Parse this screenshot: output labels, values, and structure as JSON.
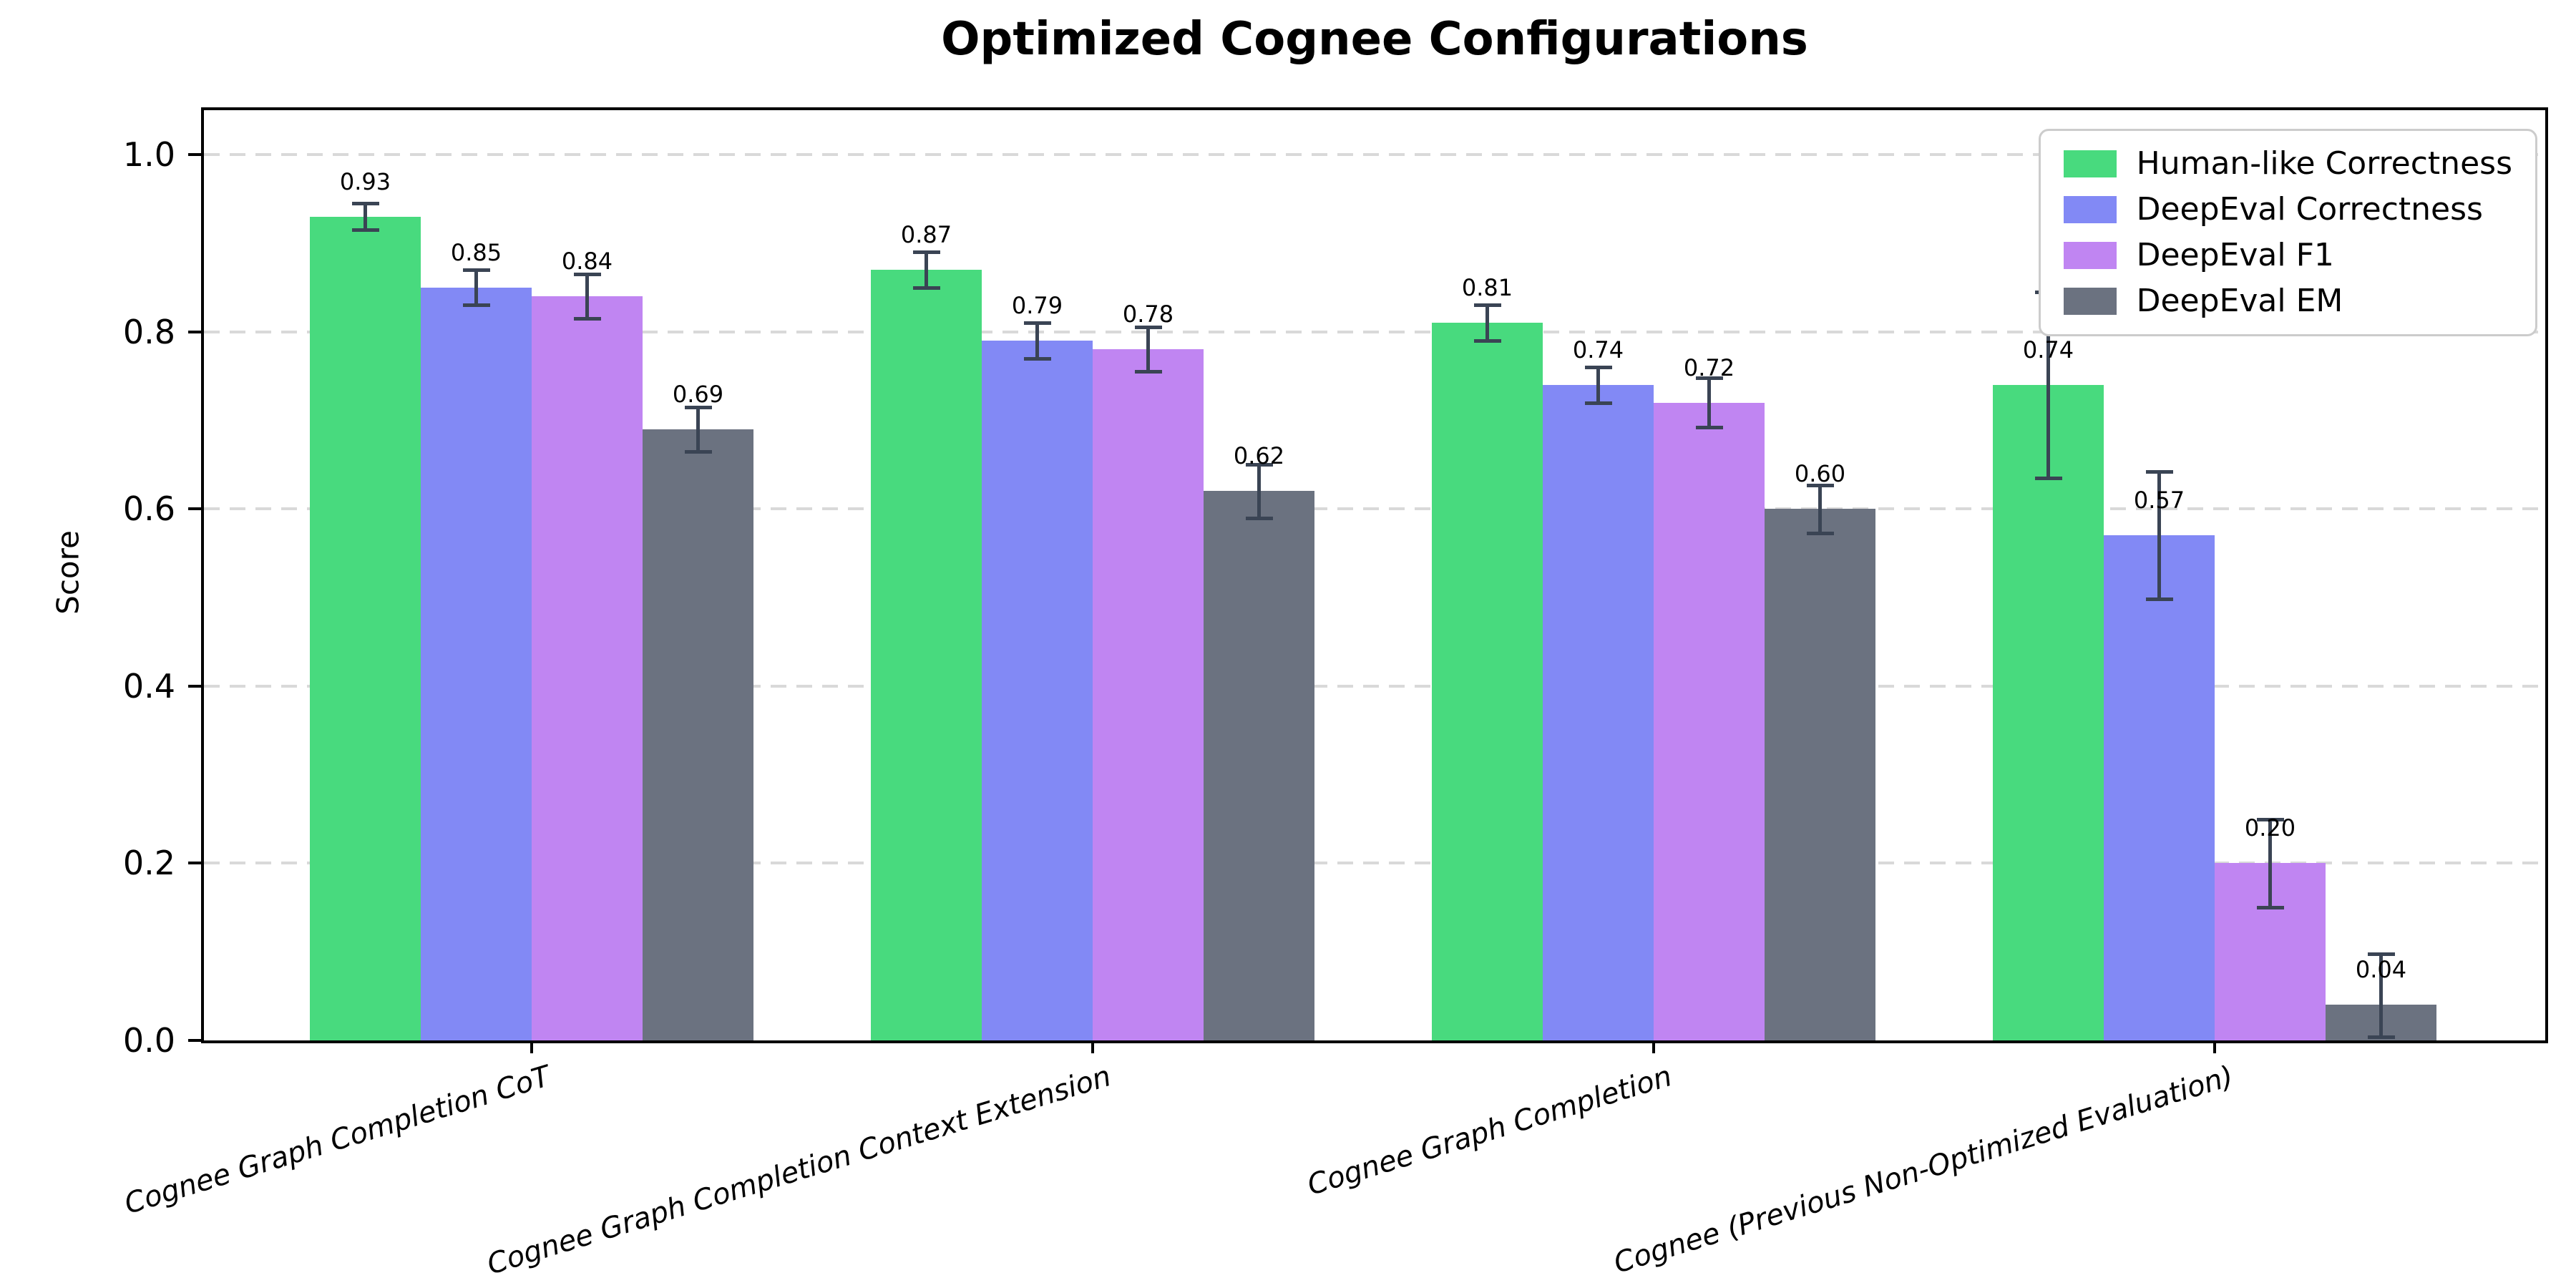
{
  "chart_data": {
    "type": "bar",
    "title": "Optimized Cognee Configurations",
    "ylabel": "Score",
    "xlabel": "",
    "categories": [
      "Cognee Graph Completion CoT",
      "Cognee Graph Completion Context Extension",
      "Cognee Graph Completion",
      "Cognee (Previous Non-Optimized Evaluation)"
    ],
    "series": [
      {
        "name": "Human-like Correctness",
        "color": "#48da7e",
        "values": [
          0.93,
          0.87,
          0.81,
          0.74
        ],
        "errors": [
          0.015,
          0.02,
          0.02,
          0.105
        ]
      },
      {
        "name": "DeepEval Correctness",
        "color": "#8289f5",
        "values": [
          0.85,
          0.79,
          0.74,
          0.57
        ],
        "errors": [
          0.02,
          0.02,
          0.02,
          0.072
        ]
      },
      {
        "name": "DeepEval F1",
        "color": "#c085f2",
        "values": [
          0.84,
          0.78,
          0.72,
          0.2
        ],
        "errors": [
          0.025,
          0.025,
          0.028,
          0.05
        ]
      },
      {
        "name": "DeepEval EM",
        "color": "#6b7280",
        "values": [
          0.69,
          0.62,
          0.6,
          0.04
        ],
        "errors": [
          0.025,
          0.03,
          0.027,
          0.058
        ]
      }
    ],
    "bar_value_label_format": "2-decimals",
    "yticks": [
      0.0,
      0.2,
      0.4,
      0.6,
      0.8,
      1.0
    ],
    "ylim": [
      0,
      1.05
    ],
    "grid": {
      "axis": "y",
      "style": "dashed",
      "color": "#d9d9d9"
    },
    "legend_position": "upper-right",
    "error_bar_color": "#3a4454",
    "background_color": "#ffffff",
    "axis_color": "#000000"
  }
}
